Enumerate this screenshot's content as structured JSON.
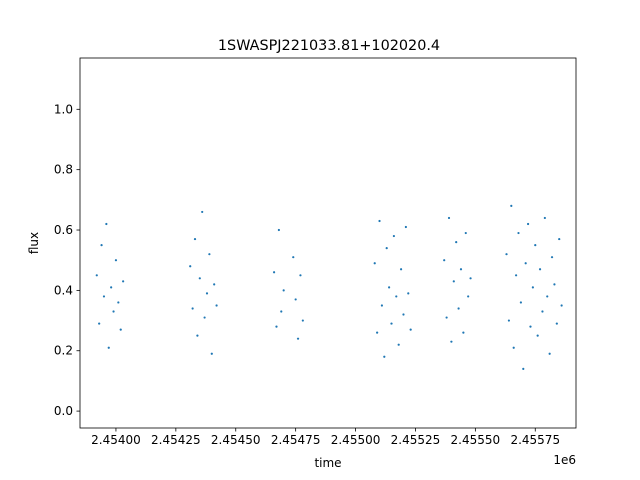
{
  "chart_data": {
    "type": "scatter",
    "title": "1SWASPJ221033.81+102020.4",
    "xlabel": "time",
    "ylabel": "flux",
    "x_offset_label": "1e6",
    "xlim": [
      2.45385,
      2.45592
    ],
    "ylim": [
      -0.056,
      1.17
    ],
    "x_ticks": [
      2.454,
      2.45425,
      2.4545,
      2.45475,
      2.455,
      2.45525,
      2.4555,
      2.45575
    ],
    "x_tick_labels": [
      "2.45400",
      "2.45425",
      "2.45450",
      "2.45475",
      "2.45500",
      "2.45525",
      "2.45550",
      "2.45575"
    ],
    "y_ticks": [
      0.0,
      0.2,
      0.4,
      0.6,
      0.8,
      1.0
    ],
    "y_tick_labels": [
      "0.0",
      "0.2",
      "0.4",
      "0.6",
      "0.8",
      "1.0"
    ],
    "grid": false,
    "marker_color": "#1f77b4",
    "series": [
      {
        "x": [
          2.45392,
          2.45393,
          2.45394,
          2.45395,
          2.45396,
          2.45397,
          2.45398,
          2.45399,
          2.454,
          2.45401,
          2.45402,
          2.45403,
          2.45431,
          2.45432,
          2.45433,
          2.45434,
          2.45435,
          2.45436,
          2.45437,
          2.45438,
          2.45439,
          2.4544,
          2.45441,
          2.45442,
          2.45466,
          2.45467,
          2.45468,
          2.45469,
          2.4547,
          2.45474,
          2.45475,
          2.45476,
          2.45477,
          2.45478,
          2.45508,
          2.45509,
          2.4551,
          2.45511,
          2.45512,
          2.45513,
          2.45514,
          2.45515,
          2.45516,
          2.45517,
          2.45518,
          2.45519,
          2.4552,
          2.45521,
          2.45522,
          2.45523,
          2.45537,
          2.45538,
          2.45539,
          2.4554,
          2.45541,
          2.45542,
          2.45543,
          2.45544,
          2.45545,
          2.45546,
          2.45547,
          2.45548,
          2.45563,
          2.45564,
          2.45565,
          2.45566,
          2.45567,
          2.45568,
          2.45569,
          2.4557,
          2.45571,
          2.45572,
          2.45573,
          2.45574,
          2.45575,
          2.45576,
          2.45577,
          2.45578,
          2.45579,
          2.4558,
          2.45581,
          2.45582,
          2.45583,
          2.45584,
          2.45585,
          2.45586
        ],
        "y": [
          0.45,
          0.29,
          0.55,
          0.38,
          0.62,
          0.21,
          0.41,
          0.33,
          0.5,
          0.36,
          0.27,
          0.43,
          0.48,
          0.34,
          0.57,
          0.25,
          0.44,
          0.66,
          0.31,
          0.39,
          0.52,
          0.19,
          0.42,
          0.35,
          0.46,
          0.28,
          0.6,
          0.33,
          0.4,
          0.51,
          0.37,
          0.24,
          0.45,
          0.3,
          0.49,
          0.26,
          0.63,
          0.35,
          0.18,
          0.54,
          0.41,
          0.29,
          0.58,
          0.38,
          0.22,
          0.47,
          0.32,
          0.61,
          0.39,
          0.27,
          0.5,
          0.31,
          0.64,
          0.23,
          0.43,
          0.56,
          0.34,
          0.47,
          0.26,
          0.59,
          0.38,
          0.44,
          0.52,
          0.3,
          0.68,
          0.21,
          0.45,
          0.59,
          0.36,
          0.14,
          0.49,
          0.62,
          0.28,
          0.41,
          0.55,
          0.25,
          0.47,
          0.33,
          0.64,
          0.38,
          0.19,
          0.51,
          0.42,
          0.29,
          0.57,
          0.35
        ]
      }
    ]
  }
}
